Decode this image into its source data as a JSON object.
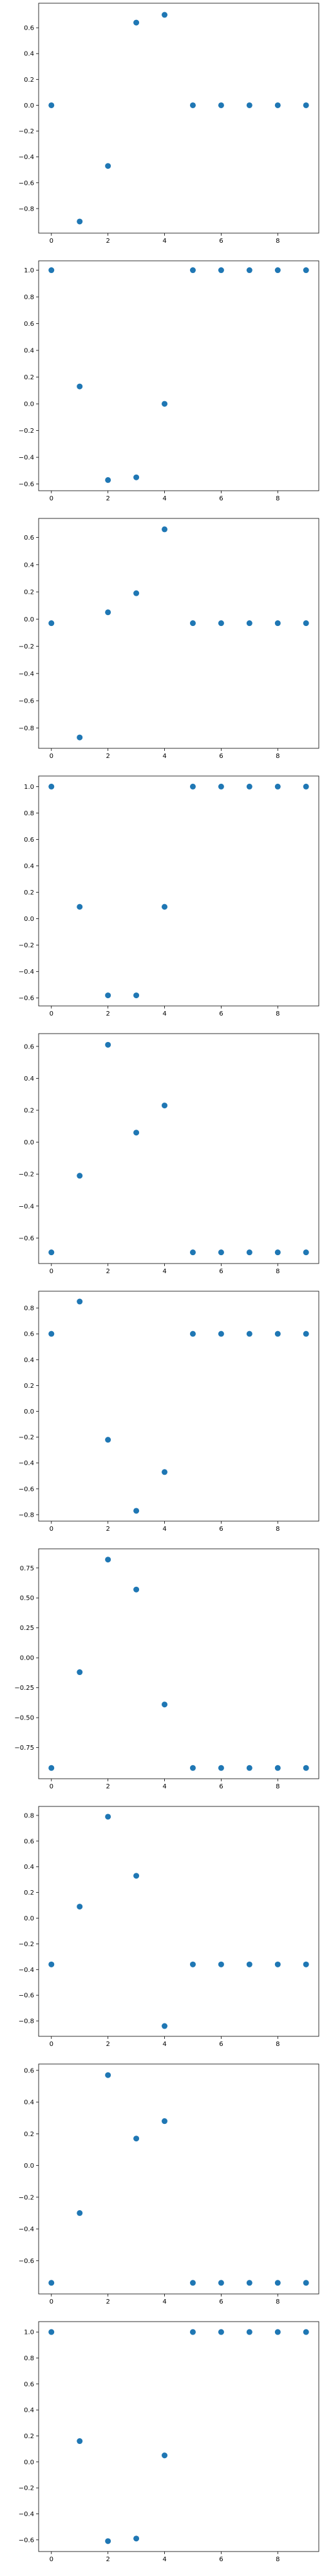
{
  "chart_data": [
    {
      "type": "scatter",
      "x": [
        0,
        1,
        2,
        3,
        4,
        5,
        6,
        7,
        8,
        9
      ],
      "values": [
        0.0,
        -0.9,
        -0.47,
        0.64,
        0.7,
        0.0,
        0.0,
        0.0,
        0.0,
        0.0
      ],
      "xlim": [
        -0.45,
        9.45
      ],
      "ylim": [
        -0.99,
        0.79
      ],
      "xticks": [
        0,
        2,
        4,
        6,
        8
      ],
      "xtick_labels": [
        "0",
        "2",
        "4",
        "6",
        "8"
      ],
      "yticks": [
        -0.8,
        -0.6,
        -0.4,
        -0.2,
        0.0,
        0.2,
        0.4,
        0.6
      ],
      "ytick_labels": [
        "−0.8",
        "−0.6",
        "−0.4",
        "−0.2",
        "0.0",
        "0.2",
        "0.4",
        "0.6"
      ],
      "grid": false,
      "color": "#1f77b4"
    },
    {
      "type": "scatter",
      "x": [
        0,
        1,
        2,
        3,
        4,
        5,
        6,
        7,
        8,
        9
      ],
      "values": [
        1.0,
        0.13,
        -0.57,
        -0.55,
        0.0,
        1.0,
        1.0,
        1.0,
        1.0,
        1.0
      ],
      "xlim": [
        -0.45,
        9.45
      ],
      "ylim": [
        -0.65,
        1.07
      ],
      "xticks": [
        0,
        2,
        4,
        6,
        8
      ],
      "xtick_labels": [
        "0",
        "2",
        "4",
        "6",
        "8"
      ],
      "yticks": [
        -0.6,
        -0.4,
        -0.2,
        0.0,
        0.2,
        0.4,
        0.6,
        0.8,
        1.0
      ],
      "ytick_labels": [
        "−0.6",
        "−0.4",
        "−0.2",
        "0.0",
        "0.2",
        "0.4",
        "0.6",
        "0.8",
        "1.0"
      ],
      "grid": false,
      "color": "#1f77b4"
    },
    {
      "type": "scatter",
      "x": [
        0,
        1,
        2,
        3,
        4,
        5,
        6,
        7,
        8,
        9
      ],
      "values": [
        -0.03,
        -0.87,
        0.05,
        0.19,
        0.66,
        -0.03,
        -0.03,
        -0.03,
        -0.03,
        -0.03
      ],
      "xlim": [
        -0.45,
        9.45
      ],
      "ylim": [
        -0.95,
        0.74
      ],
      "xticks": [
        0,
        2,
        4,
        6,
        8
      ],
      "xtick_labels": [
        "0",
        "2",
        "4",
        "6",
        "8"
      ],
      "yticks": [
        -0.8,
        -0.6,
        -0.4,
        -0.2,
        0.0,
        0.2,
        0.4,
        0.6
      ],
      "ytick_labels": [
        "−0.8",
        "−0.6",
        "−0.4",
        "−0.2",
        "0.0",
        "0.2",
        "0.4",
        "0.6"
      ],
      "grid": false,
      "color": "#1f77b4"
    },
    {
      "type": "scatter",
      "x": [
        0,
        1,
        2,
        3,
        4,
        5,
        6,
        7,
        8,
        9
      ],
      "values": [
        1.0,
        0.09,
        -0.58,
        -0.58,
        0.09,
        1.0,
        1.0,
        1.0,
        1.0,
        1.0
      ],
      "xlim": [
        -0.45,
        9.45
      ],
      "ylim": [
        -0.66,
        1.08
      ],
      "xticks": [
        0,
        2,
        4,
        6,
        8
      ],
      "xtick_labels": [
        "0",
        "2",
        "4",
        "6",
        "8"
      ],
      "yticks": [
        -0.6,
        -0.4,
        -0.2,
        0.0,
        0.2,
        0.4,
        0.6,
        0.8,
        1.0
      ],
      "ytick_labels": [
        "−0.6",
        "−0.4",
        "−0.2",
        "0.0",
        "0.2",
        "0.4",
        "0.6",
        "0.8",
        "1.0"
      ],
      "grid": false,
      "color": "#1f77b4"
    },
    {
      "type": "scatter",
      "x": [
        0,
        1,
        2,
        3,
        4,
        5,
        6,
        7,
        8,
        9
      ],
      "values": [
        -0.69,
        -0.21,
        0.61,
        0.06,
        0.23,
        -0.69,
        -0.69,
        -0.69,
        -0.69,
        -0.69
      ],
      "xlim": [
        -0.45,
        9.45
      ],
      "ylim": [
        -0.76,
        0.68
      ],
      "xticks": [
        0,
        2,
        4,
        6,
        8
      ],
      "xtick_labels": [
        "0",
        "2",
        "4",
        "6",
        "8"
      ],
      "yticks": [
        -0.6,
        -0.4,
        -0.2,
        0.0,
        0.2,
        0.4,
        0.6
      ],
      "ytick_labels": [
        "−0.6",
        "−0.4",
        "−0.2",
        "0.0",
        "0.2",
        "0.4",
        "0.6"
      ],
      "grid": false,
      "color": "#1f77b4"
    },
    {
      "type": "scatter",
      "x": [
        0,
        1,
        2,
        3,
        4,
        5,
        6,
        7,
        8,
        9
      ],
      "values": [
        0.6,
        0.85,
        -0.22,
        -0.77,
        -0.47,
        0.6,
        0.6,
        0.6,
        0.6,
        0.6
      ],
      "xlim": [
        -0.45,
        9.45
      ],
      "ylim": [
        -0.85,
        0.93
      ],
      "xticks": [
        0,
        2,
        4,
        6,
        8
      ],
      "xtick_labels": [
        "0",
        "2",
        "4",
        "6",
        "8"
      ],
      "yticks": [
        -0.8,
        -0.6,
        -0.4,
        -0.2,
        0.0,
        0.2,
        0.4,
        0.6,
        0.8
      ],
      "ytick_labels": [
        "−0.8",
        "−0.6",
        "−0.4",
        "−0.2",
        "0.0",
        "0.2",
        "0.4",
        "0.6",
        "0.8"
      ],
      "grid": false,
      "color": "#1f77b4"
    },
    {
      "type": "scatter",
      "x": [
        0,
        1,
        2,
        3,
        4,
        5,
        6,
        7,
        8,
        9
      ],
      "values": [
        -0.92,
        -0.12,
        0.82,
        0.57,
        -0.39,
        -0.92,
        -0.92,
        -0.92,
        -0.92,
        -0.92
      ],
      "xlim": [
        -0.45,
        9.45
      ],
      "ylim": [
        -1.01,
        0.91
      ],
      "xticks": [
        0,
        2,
        4,
        6,
        8
      ],
      "xtick_labels": [
        "0",
        "2",
        "4",
        "6",
        "8"
      ],
      "yticks": [
        -0.75,
        -0.5,
        -0.25,
        0.0,
        0.25,
        0.5,
        0.75
      ],
      "ytick_labels": [
        "−0.75",
        "−0.50",
        "−0.25",
        "0.00",
        "0.25",
        "0.50",
        "0.75"
      ],
      "grid": false,
      "color": "#1f77b4"
    },
    {
      "type": "scatter",
      "x": [
        0,
        1,
        2,
        3,
        4,
        5,
        6,
        7,
        8,
        9
      ],
      "values": [
        -0.36,
        0.09,
        0.79,
        0.33,
        -0.84,
        -0.36,
        -0.36,
        -0.36,
        -0.36,
        -0.36
      ],
      "xlim": [
        -0.45,
        9.45
      ],
      "ylim": [
        -0.92,
        0.87
      ],
      "xticks": [
        0,
        2,
        4,
        6,
        8
      ],
      "xtick_labels": [
        "0",
        "2",
        "4",
        "6",
        "8"
      ],
      "yticks": [
        -0.8,
        -0.6,
        -0.4,
        -0.2,
        0.0,
        0.2,
        0.4,
        0.6,
        0.8
      ],
      "ytick_labels": [
        "−0.8",
        "−0.6",
        "−0.4",
        "−0.2",
        "0.0",
        "0.2",
        "0.4",
        "0.6",
        "0.8"
      ],
      "grid": false,
      "color": "#1f77b4"
    },
    {
      "type": "scatter",
      "x": [
        0,
        1,
        2,
        3,
        4,
        5,
        6,
        7,
        8,
        9
      ],
      "values": [
        -0.74,
        -0.3,
        0.57,
        0.17,
        0.28,
        -0.74,
        -0.74,
        -0.74,
        -0.74,
        -0.74
      ],
      "xlim": [
        -0.45,
        9.45
      ],
      "ylim": [
        -0.81,
        0.64
      ],
      "xticks": [
        0,
        2,
        4,
        6,
        8
      ],
      "xtick_labels": [
        "0",
        "2",
        "4",
        "6",
        "8"
      ],
      "yticks": [
        -0.6,
        -0.4,
        -0.2,
        0.0,
        0.2,
        0.4,
        0.6
      ],
      "ytick_labels": [
        "−0.6",
        "−0.4",
        "−0.2",
        "0.0",
        "0.2",
        "0.4",
        "0.6"
      ],
      "grid": false,
      "color": "#1f77b4"
    },
    {
      "type": "scatter",
      "x": [
        0,
        1,
        2,
        3,
        4,
        5,
        6,
        7,
        8,
        9
      ],
      "values": [
        1.0,
        0.16,
        -0.61,
        -0.59,
        0.05,
        1.0,
        1.0,
        1.0,
        1.0,
        1.0
      ],
      "xlim": [
        -0.45,
        9.45
      ],
      "ylim": [
        -0.69,
        1.08
      ],
      "xticks": [
        0,
        2,
        4,
        6,
        8
      ],
      "xtick_labels": [
        "0",
        "2",
        "4",
        "6",
        "8"
      ],
      "yticks": [
        -0.6,
        -0.4,
        -0.2,
        0.0,
        0.2,
        0.4,
        0.6,
        0.8,
        1.0
      ],
      "ytick_labels": [
        "−0.6",
        "−0.4",
        "−0.2",
        "0.0",
        "0.2",
        "0.4",
        "0.6",
        "0.8",
        "1.0"
      ],
      "grid": false,
      "color": "#1f77b4"
    }
  ]
}
